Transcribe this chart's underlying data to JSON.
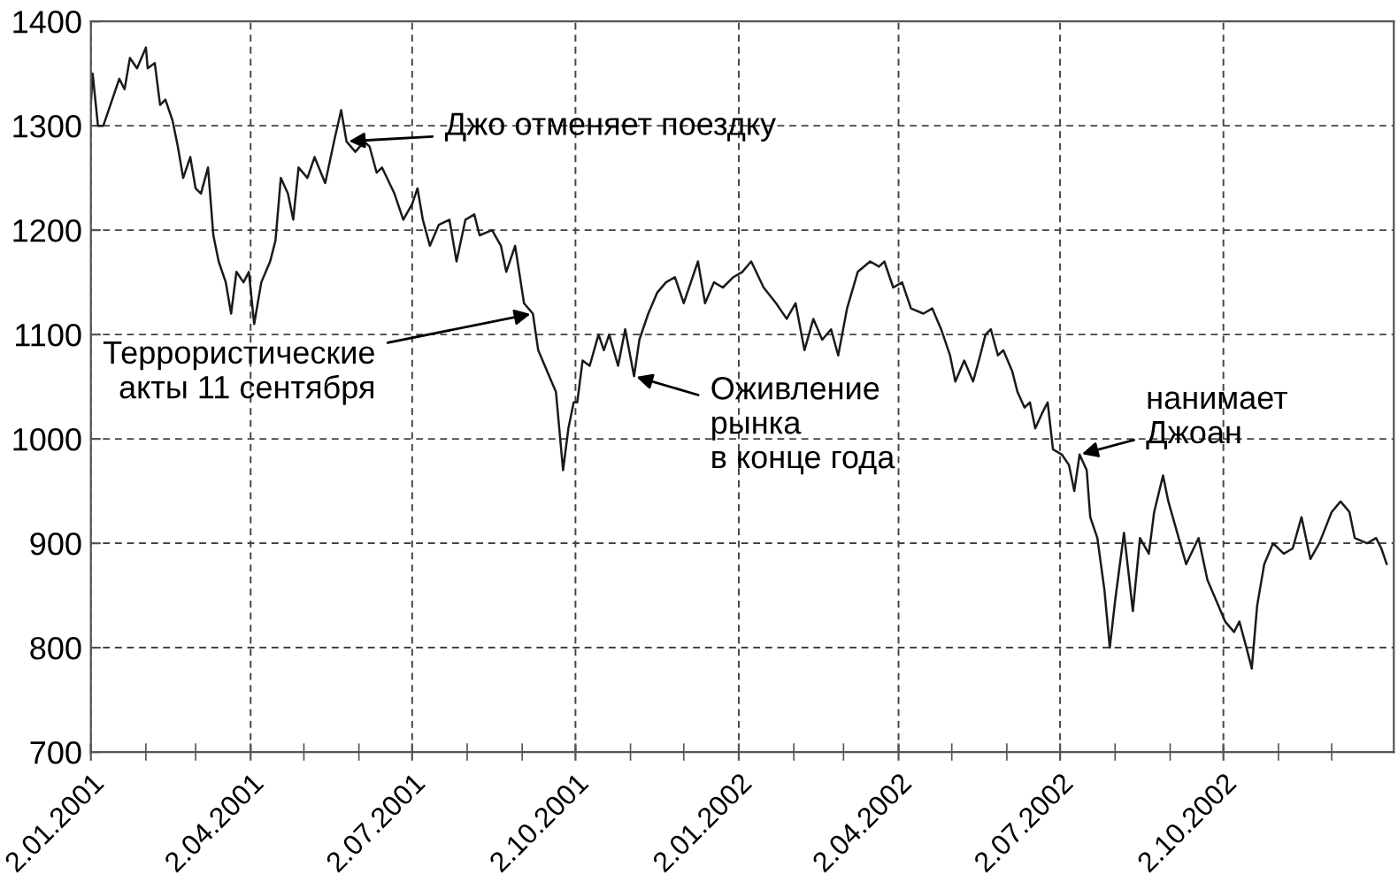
{
  "chart_data": {
    "type": "line",
    "x": [
      "2001-01-02",
      "2001-01-03",
      "2001-01-06",
      "2001-01-09",
      "2001-01-13",
      "2001-01-18",
      "2001-01-21",
      "2001-01-24",
      "2001-01-28",
      "2001-02-02",
      "2001-02-03",
      "2001-02-07",
      "2001-02-10",
      "2001-02-13",
      "2001-02-17",
      "2001-02-20",
      "2001-02-23",
      "2001-02-27",
      "2001-03-02",
      "2001-03-05",
      "2001-03-09",
      "2001-03-12",
      "2001-03-15",
      "2001-03-19",
      "2001-03-22",
      "2001-03-25",
      "2001-03-29",
      "2001-04-01",
      "2001-04-04",
      "2001-04-08",
      "2001-04-13",
      "2001-04-16",
      "2001-04-19",
      "2001-04-23",
      "2001-04-26",
      "2001-04-29",
      "2001-05-04",
      "2001-05-08",
      "2001-05-14",
      "2001-05-19",
      "2001-05-23",
      "2001-05-26",
      "2001-05-31",
      "2001-06-05",
      "2001-06-08",
      "2001-06-12",
      "2001-06-15",
      "2001-06-22",
      "2001-06-27",
      "2001-07-02",
      "2001-07-05",
      "2001-07-08",
      "2001-07-12",
      "2001-07-17",
      "2001-07-23",
      "2001-07-27",
      "2001-08-01",
      "2001-08-06",
      "2001-08-09",
      "2001-08-16",
      "2001-08-21",
      "2001-08-24",
      "2001-08-29",
      "2001-09-03",
      "2001-09-08",
      "2001-09-11",
      "2001-09-16",
      "2001-09-21",
      "2001-09-25",
      "2001-09-28",
      "2001-10-01",
      "2001-10-03",
      "2001-10-06",
      "2001-10-10",
      "2001-10-15",
      "2001-10-18",
      "2001-10-21",
      "2001-10-26",
      "2001-10-30",
      "2001-11-04",
      "2001-11-07",
      "2001-11-12",
      "2001-11-17",
      "2001-11-22",
      "2001-11-27",
      "2001-12-02",
      "2001-12-07",
      "2001-12-10",
      "2001-12-14",
      "2001-12-19",
      "2001-12-24",
      "2001-12-30",
      "2002-01-04",
      "2002-01-09",
      "2002-01-16",
      "2002-01-23",
      "2002-01-29",
      "2002-02-03",
      "2002-02-08",
      "2002-02-13",
      "2002-02-18",
      "2002-02-23",
      "2002-02-27",
      "2002-03-04",
      "2002-03-10",
      "2002-03-17",
      "2002-03-22",
      "2002-03-25",
      "2002-03-30",
      "2002-04-04",
      "2002-04-09",
      "2002-04-16",
      "2002-04-21",
      "2002-04-26",
      "2002-05-01",
      "2002-05-04",
      "2002-05-09",
      "2002-05-14",
      "2002-05-18",
      "2002-05-21",
      "2002-05-24",
      "2002-05-28",
      "2002-05-31",
      "2002-06-05",
      "2002-06-08",
      "2002-06-12",
      "2002-06-15",
      "2002-06-18",
      "2002-06-22",
      "2002-06-25",
      "2002-06-28",
      "2002-07-03",
      "2002-07-07",
      "2002-07-10",
      "2002-07-13",
      "2002-07-17",
      "2002-07-19",
      "2002-07-23",
      "2002-07-27",
      "2002-07-30",
      "2002-08-02",
      "2002-08-07",
      "2002-08-12",
      "2002-08-16",
      "2002-08-21",
      "2002-08-24",
      "2002-08-29",
      "2002-09-01",
      "2002-09-06",
      "2002-09-11",
      "2002-09-18",
      "2002-09-23",
      "2002-09-28",
      "2002-10-03",
      "2002-10-08",
      "2002-10-11",
      "2002-10-15",
      "2002-10-18",
      "2002-10-21",
      "2002-10-25",
      "2002-10-30",
      "2002-11-05",
      "2002-11-10",
      "2002-11-15",
      "2002-11-20",
      "2002-11-25",
      "2002-12-02",
      "2002-12-07",
      "2002-12-12",
      "2002-12-15",
      "2002-12-22",
      "2002-12-27",
      "2002-12-30",
      "2003-01-02"
    ],
    "series": [
      {
        "color": "#1a1a1a",
        "values": [
          1320,
          1350,
          1300,
          1300,
          1320,
          1345,
          1335,
          1365,
          1355,
          1375,
          1355,
          1360,
          1320,
          1325,
          1305,
          1280,
          1250,
          1270,
          1240,
          1235,
          1260,
          1195,
          1170,
          1150,
          1120,
          1160,
          1150,
          1160,
          1110,
          1150,
          1170,
          1190,
          1250,
          1235,
          1210,
          1260,
          1250,
          1270,
          1245,
          1285,
          1315,
          1285,
          1275,
          1285,
          1280,
          1255,
          1260,
          1235,
          1210,
          1225,
          1240,
          1210,
          1185,
          1205,
          1210,
          1170,
          1210,
          1215,
          1195,
          1200,
          1185,
          1160,
          1185,
          1130,
          1120,
          1085,
          1065,
          1045,
          970,
          1010,
          1035,
          1035,
          1075,
          1070,
          1100,
          1085,
          1100,
          1070,
          1105,
          1060,
          1095,
          1120,
          1140,
          1150,
          1155,
          1130,
          1155,
          1170,
          1130,
          1150,
          1145,
          1155,
          1160,
          1170,
          1145,
          1130,
          1115,
          1130,
          1085,
          1115,
          1095,
          1105,
          1080,
          1125,
          1160,
          1170,
          1165,
          1170,
          1145,
          1150,
          1125,
          1120,
          1125,
          1105,
          1080,
          1055,
          1075,
          1055,
          1080,
          1100,
          1105,
          1080,
          1085,
          1065,
          1045,
          1030,
          1035,
          1010,
          1025,
          1035,
          990,
          985,
          975,
          950,
          985,
          970,
          925,
          905,
          855,
          800,
          845,
          910,
          835,
          905,
          890,
          930,
          965,
          940,
          910,
          880,
          905,
          865,
          845,
          825,
          815,
          825,
          800,
          780,
          840,
          880,
          900,
          890,
          895,
          925,
          885,
          900,
          930,
          940,
          930,
          905,
          900,
          905,
          895,
          880
        ]
      }
    ],
    "xlim": [
      "2001-01-02",
      "2003-01-06"
    ],
    "xticks": [
      {
        "value": "2001-01-02",
        "label": "2.01.2001"
      },
      {
        "value": "2001-02-02",
        "label": null
      },
      {
        "value": "2001-03-02",
        "label": null
      },
      {
        "value": "2001-04-02",
        "label": "2.04.2001"
      },
      {
        "value": "2001-05-02",
        "label": null
      },
      {
        "value": "2001-06-02",
        "label": null
      },
      {
        "value": "2001-07-02",
        "label": "2.07.2001"
      },
      {
        "value": "2001-08-02",
        "label": null
      },
      {
        "value": "2001-09-02",
        "label": null
      },
      {
        "value": "2001-10-02",
        "label": "2.10.2001"
      },
      {
        "value": "2001-11-02",
        "label": null
      },
      {
        "value": "2001-12-02",
        "label": null
      },
      {
        "value": "2002-01-02",
        "label": "2.01.2002"
      },
      {
        "value": "2002-02-02",
        "label": null
      },
      {
        "value": "2002-03-02",
        "label": null
      },
      {
        "value": "2002-04-02",
        "label": "2.04.2002"
      },
      {
        "value": "2002-05-02",
        "label": null
      },
      {
        "value": "2002-06-02",
        "label": null
      },
      {
        "value": "2002-07-02",
        "label": "2.07.2002"
      },
      {
        "value": "2002-08-02",
        "label": null
      },
      {
        "value": "2002-09-02",
        "label": null
      },
      {
        "value": "2002-10-02",
        "label": "2.10.2002"
      },
      {
        "value": "2002-11-02",
        "label": null
      },
      {
        "value": "2002-12-02",
        "label": null
      }
    ],
    "ylim": [
      700,
      1400
    ],
    "yticks": [
      700,
      800,
      900,
      1000,
      1100,
      1200,
      1300,
      1400
    ],
    "grid": true,
    "line_style": "solid",
    "marker": "none",
    "annotations": [
      {
        "text": "Джо отменяет поездку",
        "x": "2001-05-26",
        "y": 1285
      },
      {
        "text": "Террористические\nакты 11 сентября",
        "x": "2001-09-08",
        "y": 1120
      },
      {
        "text": "Оживление\nрынка\nв конце года",
        "x": "2001-11-04",
        "y": 1060
      },
      {
        "text": "нанимает\nДжоан",
        "x": "2002-07-13",
        "y": 985
      }
    ]
  }
}
